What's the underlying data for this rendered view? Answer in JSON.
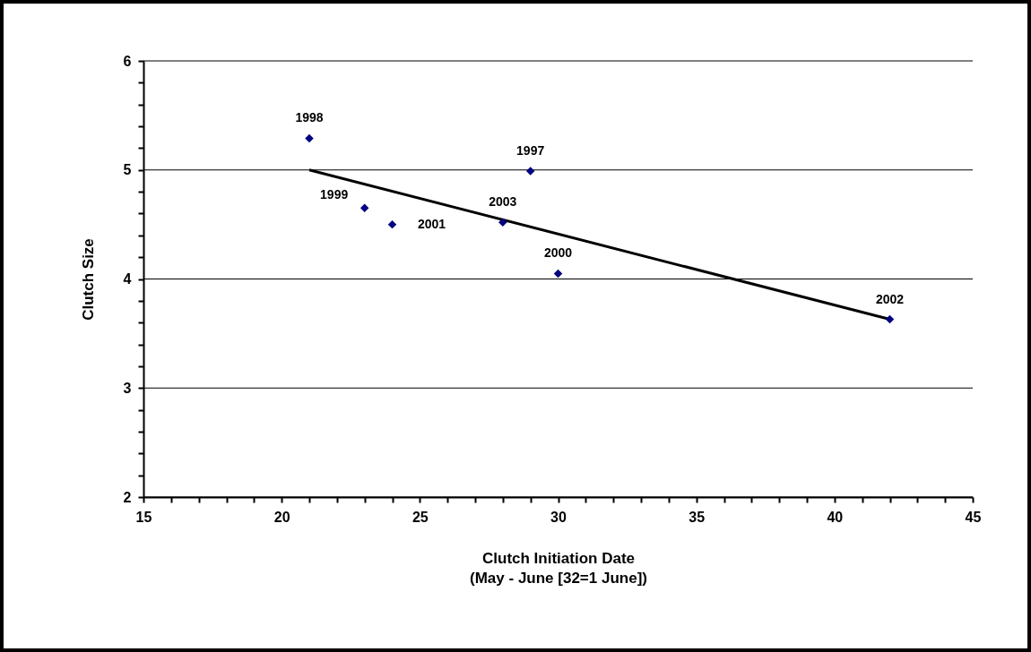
{
  "chart_data": {
    "type": "scatter",
    "xlabel": "Clutch Initiation Date\n(May - June [32=1 June])",
    "ylabel": "Clutch Size",
    "xlim": [
      15,
      45
    ],
    "ylim": [
      2,
      6
    ],
    "xticks": [
      15,
      {
        "value": 16,
        "label": null
      },
      {
        "value": 17,
        "label": null
      },
      {
        "value": 18,
        "label": null
      },
      {
        "value": 19,
        "label": null
      },
      20,
      {
        "value": 21,
        "label": null
      },
      {
        "value": 22,
        "label": null
      },
      {
        "value": 23,
        "label": null
      },
      {
        "value": 24,
        "label": null
      },
      25,
      {
        "value": 26,
        "label": null
      },
      {
        "value": 27,
        "label": null
      },
      {
        "value": 28,
        "label": null
      },
      {
        "value": 29,
        "label": null
      },
      30,
      {
        "value": 31,
        "label": null
      },
      {
        "value": 32,
        "label": null
      },
      {
        "value": 33,
        "label": null
      },
      {
        "value": 34,
        "label": null
      },
      35,
      {
        "value": 36,
        "label": null
      },
      {
        "value": 37,
        "label": null
      },
      {
        "value": 38,
        "label": null
      },
      {
        "value": 39,
        "label": null
      },
      40,
      {
        "value": 41,
        "label": null
      },
      {
        "value": 42,
        "label": null
      },
      {
        "value": 43,
        "label": null
      },
      {
        "value": 44,
        "label": null
      },
      45
    ],
    "yticks": [
      2,
      {
        "value": 2.2,
        "label": null
      },
      {
        "value": 2.4,
        "label": null
      },
      {
        "value": 2.6,
        "label": null
      },
      {
        "value": 2.8,
        "label": null
      },
      3,
      {
        "value": 3.2,
        "label": null
      },
      {
        "value": 3.4,
        "label": null
      },
      {
        "value": 3.6,
        "label": null
      },
      {
        "value": 3.8,
        "label": null
      },
      4,
      {
        "value": 4.2,
        "label": null
      },
      {
        "value": 4.4,
        "label": null
      },
      {
        "value": 4.6,
        "label": null
      },
      {
        "value": 4.8,
        "label": null
      },
      5,
      {
        "value": 5.2,
        "label": null
      },
      {
        "value": 5.4,
        "label": null
      },
      {
        "value": 5.6,
        "label": null
      },
      {
        "value": 5.8,
        "label": null
      },
      6
    ],
    "grid": "y",
    "series": [
      {
        "type": "scatter",
        "color": "#000080",
        "marker": "diamond",
        "x": [
          21,
          23,
          24,
          28,
          29,
          30,
          42
        ],
        "values": [
          5.29,
          4.65,
          4.5,
          4.52,
          4.99,
          4.05,
          3.63
        ]
      },
      {
        "type": "line",
        "color": "#000000",
        "line_style": "solid",
        "marker": "none",
        "x": [
          21,
          42
        ],
        "values": [
          5.0,
          3.63
        ]
      }
    ],
    "annotations": [
      {
        "text": "1998",
        "x": 21,
        "y": 5.29
      },
      {
        "text": "1999",
        "x": 23,
        "y": 4.65
      },
      {
        "text": "2001",
        "x": 24,
        "y": 4.5
      },
      {
        "text": "2003",
        "x": 28,
        "y": 4.52
      },
      {
        "text": "1997",
        "x": 29,
        "y": 4.99
      },
      {
        "text": "2000",
        "x": 30,
        "y": 4.05
      },
      {
        "text": "2002",
        "x": 42,
        "y": 3.63
      }
    ]
  }
}
